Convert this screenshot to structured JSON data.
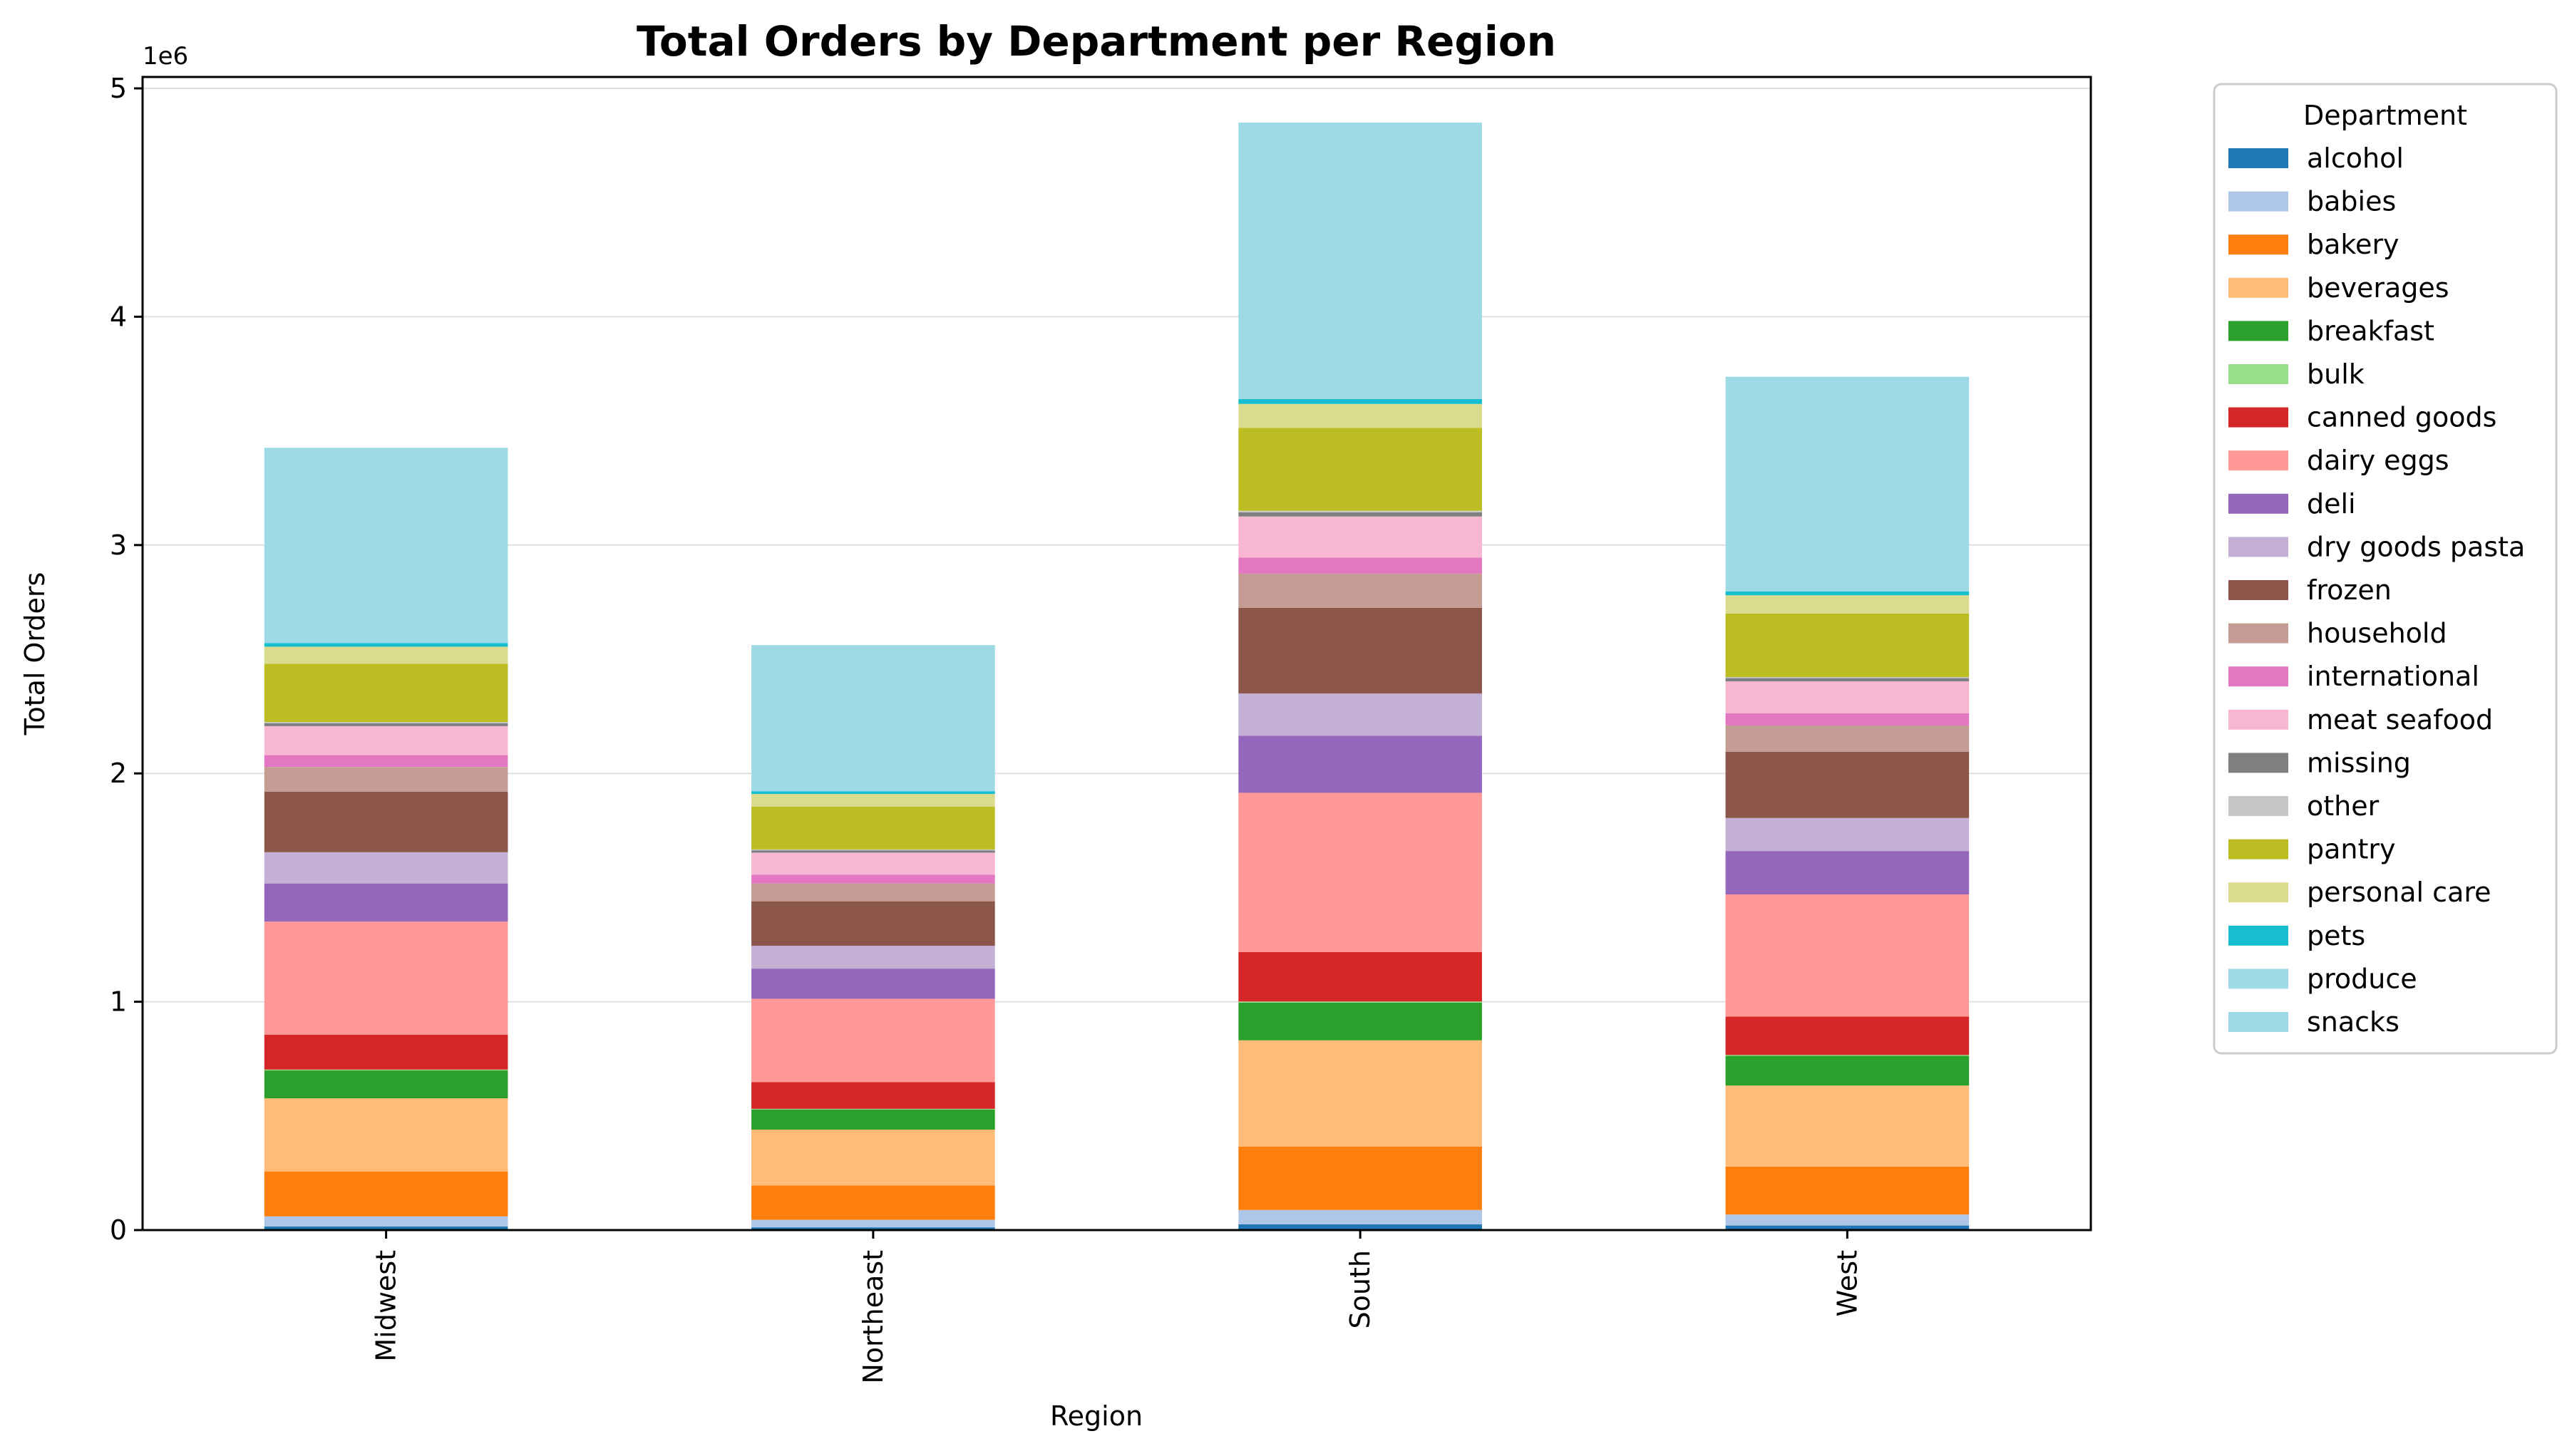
{
  "chart_data": {
    "type": "bar",
    "stacked": true,
    "title": "Total Orders by Department per Region",
    "xlabel": "Region",
    "ylabel": "Total Orders",
    "y_multiplier_label": "1e6",
    "ylim": [
      0,
      5.05
    ],
    "yticks": [
      0,
      1,
      2,
      3,
      4,
      5
    ],
    "grid": "horizontal",
    "legend_title": "Department",
    "legend_position": "outside right",
    "categories": [
      "Midwest",
      "Northeast",
      "South",
      "West"
    ],
    "series": [
      {
        "name": "alcohol",
        "color": "#1f77b4",
        "values": [
          0.016,
          0.012,
          0.025,
          0.02
        ]
      },
      {
        "name": "babies",
        "color": "#aec7e8",
        "values": [
          0.044,
          0.033,
          0.063,
          0.048
        ]
      },
      {
        "name": "bakery",
        "color": "#ff7f0e",
        "values": [
          0.197,
          0.15,
          0.278,
          0.21
        ]
      },
      {
        "name": "beverages",
        "color": "#ffbb78",
        "values": [
          0.32,
          0.245,
          0.465,
          0.355
        ]
      },
      {
        "name": "breakfast",
        "color": "#2ca02c",
        "values": [
          0.122,
          0.088,
          0.165,
          0.13
        ]
      },
      {
        "name": "bulk",
        "color": "#98df8a",
        "values": [
          0.004,
          0.003,
          0.005,
          0.004
        ]
      },
      {
        "name": "canned goods",
        "color": "#d62728",
        "values": [
          0.153,
          0.117,
          0.217,
          0.168
        ]
      },
      {
        "name": "dairy eggs",
        "color": "#ff9896",
        "values": [
          0.495,
          0.365,
          0.697,
          0.535
        ]
      },
      {
        "name": "deli",
        "color": "#9467bd",
        "values": [
          0.167,
          0.132,
          0.25,
          0.19
        ]
      },
      {
        "name": "dry goods pasta",
        "color": "#c5b0d5",
        "values": [
          0.137,
          0.1,
          0.185,
          0.145
        ]
      },
      {
        "name": "frozen",
        "color": "#8c564b",
        "values": [
          0.265,
          0.195,
          0.375,
          0.29
        ]
      },
      {
        "name": "household",
        "color": "#c49c94",
        "values": [
          0.108,
          0.078,
          0.15,
          0.115
        ]
      },
      {
        "name": "international",
        "color": "#e377c2",
        "values": [
          0.052,
          0.038,
          0.07,
          0.053
        ]
      },
      {
        "name": "meat seafood",
        "color": "#f7b6d2",
        "values": [
          0.127,
          0.097,
          0.18,
          0.14
        ]
      },
      {
        "name": "missing",
        "color": "#7f7f7f",
        "values": [
          0.013,
          0.01,
          0.018,
          0.014
        ]
      },
      {
        "name": "other",
        "color": "#c7c7c7",
        "values": [
          0.005,
          0.004,
          0.007,
          0.005
        ]
      },
      {
        "name": "pantry",
        "color": "#bcbd22",
        "values": [
          0.255,
          0.188,
          0.363,
          0.278
        ]
      },
      {
        "name": "personal care",
        "color": "#dbdb8d",
        "values": [
          0.075,
          0.055,
          0.105,
          0.08
        ]
      },
      {
        "name": "pets",
        "color": "#17becf",
        "values": [
          0.016,
          0.012,
          0.022,
          0.017
        ]
      },
      {
        "name": "produce",
        "color": "#9edae5",
        "values": [
          0.855,
          0.64,
          1.21,
          0.94
        ]
      },
      {
        "name": "snacks",
        "color": "#9edae5",
        "values": [
          0.0,
          0.0,
          0.0,
          0.0
        ]
      }
    ]
  }
}
